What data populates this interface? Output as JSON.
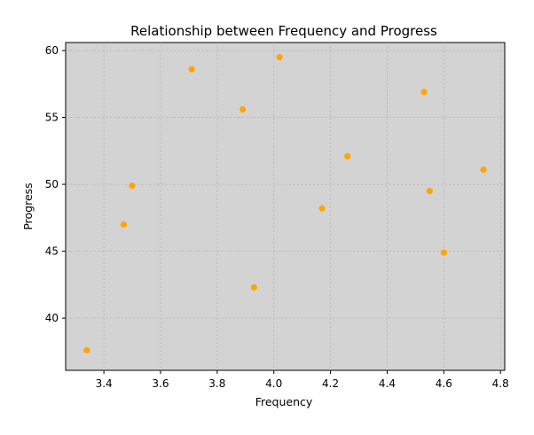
{
  "chart_data": {
    "type": "scatter",
    "title": "Relationship between Frequency and Progress",
    "xlabel": "Frequency",
    "ylabel": "Progress",
    "xlim": [
      3.265,
      4.815
    ],
    "ylim": [
      36.1,
      60.6
    ],
    "xticks": [
      3.4,
      3.6,
      3.8,
      4.0,
      4.2,
      4.4,
      4.6,
      4.8
    ],
    "xtick_labels": [
      "3.4",
      "3.6",
      "3.8",
      "4.0",
      "4.2",
      "4.4",
      "4.6",
      "4.8"
    ],
    "yticks": [
      40,
      45,
      50,
      55,
      60
    ],
    "ytick_labels": [
      "40",
      "45",
      "50",
      "55",
      "60"
    ],
    "grid": true,
    "colors": {
      "background": "#d3d3d3",
      "marker": "#ffa500",
      "grid": "#b0b0b0"
    },
    "points": [
      {
        "x": 3.34,
        "y": 37.6
      },
      {
        "x": 3.47,
        "y": 47.0
      },
      {
        "x": 3.5,
        "y": 49.9
      },
      {
        "x": 3.71,
        "y": 58.6
      },
      {
        "x": 3.89,
        "y": 55.6
      },
      {
        "x": 3.93,
        "y": 42.3
      },
      {
        "x": 4.02,
        "y": 59.5
      },
      {
        "x": 4.17,
        "y": 48.2
      },
      {
        "x": 4.26,
        "y": 52.1
      },
      {
        "x": 4.53,
        "y": 56.9
      },
      {
        "x": 4.55,
        "y": 49.5
      },
      {
        "x": 4.6,
        "y": 44.9
      },
      {
        "x": 4.74,
        "y": 51.1
      }
    ]
  }
}
